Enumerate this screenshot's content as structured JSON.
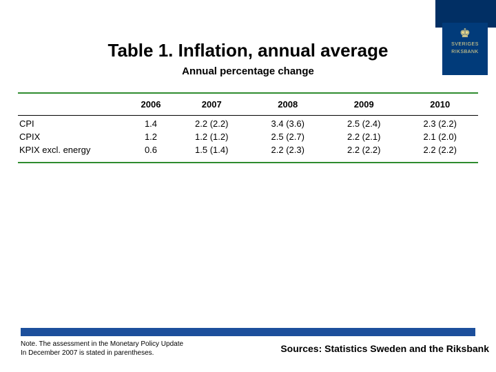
{
  "logo": {
    "emblem": "♚",
    "text1": "SVERIGES",
    "text2": "RIKSBANK"
  },
  "title": "Table 1. Inflation, annual average",
  "subtitle": "Annual percentage change",
  "table": {
    "columns": [
      "2006",
      "2007",
      "2008",
      "2009",
      "2010"
    ],
    "rows": [
      {
        "label": "CPI",
        "cells": [
          "1.4",
          "2.2 (2.2)",
          "3.4 (3.6)",
          "2.5 (2.4)",
          "2.3 (2.2)"
        ]
      },
      {
        "label": "CPIX",
        "cells": [
          "1.2",
          "1.2 (1.2)",
          "2.5 (2.7)",
          "2.2 (2.1)",
          "2.1 (2.0)"
        ]
      },
      {
        "label": "KPIX excl. energy",
        "cells": [
          "0.6",
          "1.5 (1.4)",
          "2.2 (2.3)",
          "2.2 (2.2)",
          "2.2 (2.2)"
        ]
      }
    ],
    "colors": {
      "green_line": "#2e8b2e",
      "black_line": "#000000"
    },
    "fontsize": 13
  },
  "footer_bar_color": "#1c4f9c",
  "note_line1": "Note. The assessment in the Monetary Policy Update",
  "note_line2": "In December 2007 is stated in parentheses.",
  "sources": "Sources: Statistics Sweden and the Riksbank"
}
